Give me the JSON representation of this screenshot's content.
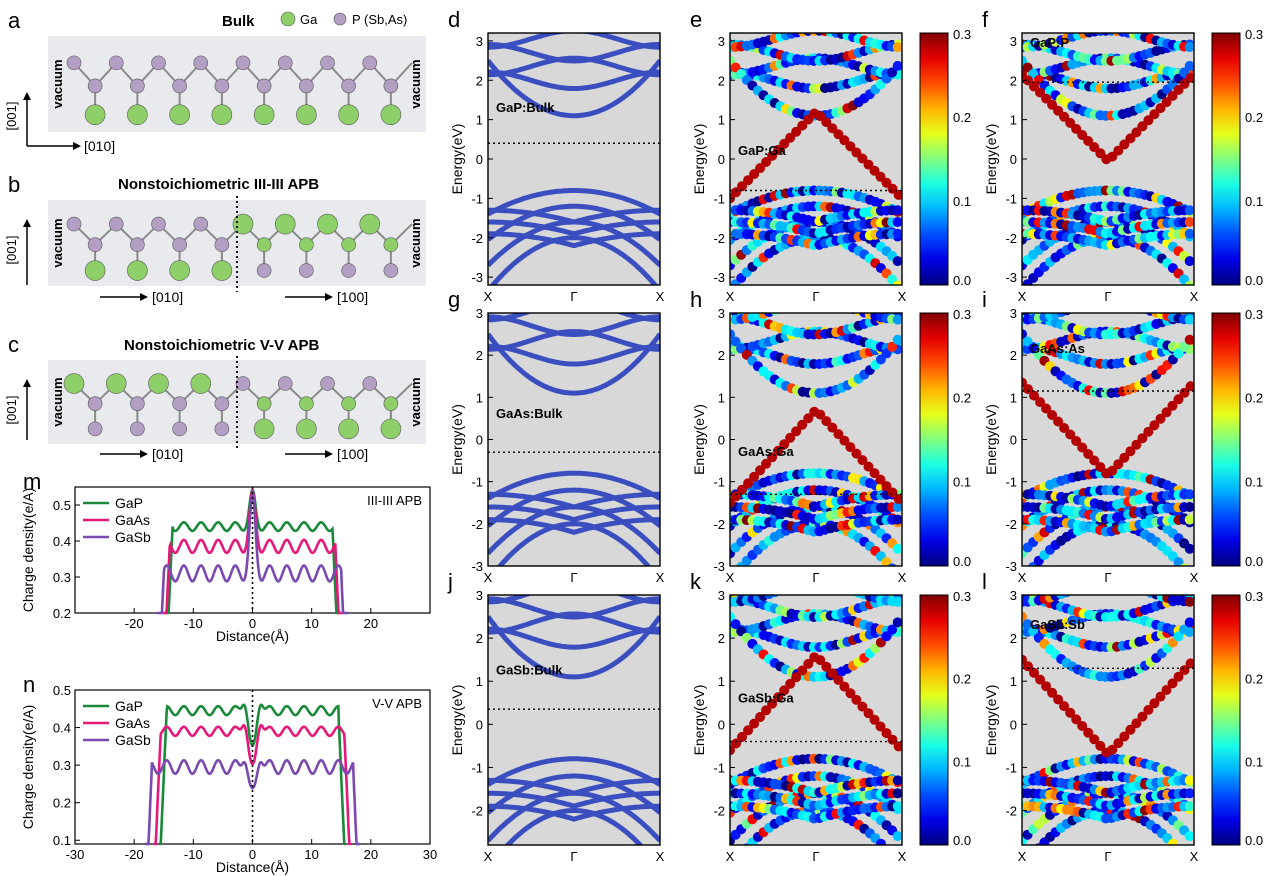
{
  "panel_letters": [
    "a",
    "b",
    "c",
    "d",
    "e",
    "f",
    "g",
    "h",
    "i",
    "j",
    "k",
    "l",
    "m",
    "n"
  ],
  "structures": {
    "legend": {
      "ga": "Ga",
      "p": "P (Sb,As)",
      "ga_color": "#8fcf6a",
      "p_color": "#b39ec4"
    },
    "a": {
      "title": "Bulk",
      "vacuum": "vacuum",
      "axis_v": "[001]",
      "axis_h": "[010]"
    },
    "b": {
      "title": "Nonstoichiometric III-III APB",
      "vacuum": "vacuum",
      "axis_v": "[001]",
      "axis_h1": "[010]",
      "axis_h2": "[100]"
    },
    "c": {
      "title": "Nonstoichiometric V-V APB",
      "vacuum": "vacuum",
      "axis_v": "[001]",
      "axis_h1": "[010]",
      "axis_h2": "[100]"
    }
  },
  "band_common": {
    "ylabel": "Energy(eV)",
    "xticks": [
      "X",
      "Γ",
      "X"
    ],
    "band_color": "#3a4ec0",
    "bg_color": "#d8d8d8"
  },
  "colorbar": {
    "ticks": [
      "0.3",
      "0.2",
      "0.1",
      "0.0"
    ]
  },
  "band_panels": [
    {
      "letter": "d",
      "label": "GaP:Bulk",
      "ylim": [
        -3.2,
        3.2
      ],
      "yticks": [
        "3",
        "2",
        "1",
        "0",
        "-1",
        "-2",
        "-3"
      ],
      "fermi": 0.4,
      "colored": false,
      "colorbar": false
    },
    {
      "letter": "e",
      "label": "GaP:Ga",
      "ylim": [
        -3.2,
        3.2
      ],
      "yticks": [
        "3",
        "2",
        "1",
        "0",
        "-1",
        "-2",
        "-3"
      ],
      "fermi": -0.8,
      "colored": true,
      "colorbar": true
    },
    {
      "letter": "f",
      "label": "GaP:P",
      "ylim": [
        -3.2,
        3.2
      ],
      "yticks": [
        "3",
        "2",
        "1",
        "0",
        "-1",
        "-2",
        "-3"
      ],
      "fermi": 1.95,
      "colored": true,
      "colorbar": true
    },
    {
      "letter": "g",
      "label": "GaAs:Bulk",
      "ylim": [
        -3,
        3
      ],
      "yticks": [
        "3",
        "2",
        "1",
        "0",
        "-1",
        "-2",
        "-3"
      ],
      "fermi": -0.3,
      "colored": false,
      "colorbar": false
    },
    {
      "letter": "h",
      "label": "GaAs:Ga",
      "ylim": [
        -3,
        3
      ],
      "yticks": [
        "3",
        "2",
        "1",
        "0",
        "-1",
        "-2",
        "-3"
      ],
      "fermi": -1.3,
      "colored": true,
      "colorbar": true
    },
    {
      "letter": "i",
      "label": "GaAs:As",
      "ylim": [
        -3,
        3
      ],
      "yticks": [
        "3",
        "2",
        "1",
        "0",
        "-1",
        "-2",
        "-3"
      ],
      "fermi": 1.15,
      "colored": true,
      "colorbar": true
    },
    {
      "letter": "j",
      "label": "GaSb:Bulk",
      "ylim": [
        -2.8,
        3
      ],
      "yticks": [
        "3",
        "2",
        "1",
        "0",
        "-1",
        "-2"
      ],
      "fermi": 0.35,
      "colored": false,
      "colorbar": false
    },
    {
      "letter": "k",
      "label": "GaSb:Ga",
      "ylim": [
        -2.8,
        3
      ],
      "yticks": [
        "3",
        "2",
        "1",
        "0",
        "-1",
        "-2"
      ],
      "fermi": -0.4,
      "colored": true,
      "colorbar": true
    },
    {
      "letter": "l",
      "label": "GaSb:Sb",
      "ylim": [
        -2.8,
        3
      ],
      "yticks": [
        "3",
        "2",
        "1",
        "0",
        "-1",
        "-2"
      ],
      "fermi": 1.3,
      "colored": true,
      "colorbar": true
    }
  ],
  "chart_data": [
    {
      "type": "line",
      "panel": "m",
      "annotation": "III-III APB",
      "xlabel": "Distance(Å)",
      "ylabel": "Charge density(e/A)",
      "xlim": [
        -30,
        30
      ],
      "ylim": [
        0.2,
        0.55
      ],
      "xticks": [
        "-20",
        "-10",
        "0",
        "10",
        "20"
      ],
      "yticks": [
        "0.5",
        "0.4",
        "0.3",
        "0.2"
      ],
      "series": [
        {
          "name": "GaP",
          "color": "#1a8a3a",
          "plateau": 0.44,
          "amp": 0.012,
          "edge": 13.5,
          "peak": 0.53
        },
        {
          "name": "GaAs",
          "color": "#e6187a",
          "plateau": 0.385,
          "amp": 0.018,
          "edge": 14.0,
          "peak": 0.52
        },
        {
          "name": "GaSb",
          "color": "#7a4ab0",
          "plateau": 0.31,
          "amp": 0.022,
          "edge": 15.0,
          "peak": 0.51
        }
      ]
    },
    {
      "type": "line",
      "panel": "n",
      "annotation": "V-V APB",
      "xlabel": "Distance(Å)",
      "ylabel": "Charge density(e/A)",
      "xlim": [
        -30,
        30
      ],
      "ylim": [
        0.09,
        0.5
      ],
      "xticks": [
        "-30",
        "-20",
        "-10",
        "0",
        "10",
        "20",
        "30"
      ],
      "yticks": [
        "0.5",
        "0.4",
        "0.3",
        "0.2",
        "0.1"
      ],
      "series": [
        {
          "name": "GaP",
          "color": "#1a8a3a",
          "plateau": 0.445,
          "amp": 0.012,
          "edge": 14.5,
          "dip": 0.34
        },
        {
          "name": "GaAs",
          "color": "#e6187a",
          "plateau": 0.39,
          "amp": 0.012,
          "edge": 15.5,
          "dip": 0.29
        },
        {
          "name": "GaSb",
          "color": "#7a4ab0",
          "plateau": 0.295,
          "amp": 0.018,
          "edge": 17.0,
          "dip": 0.22
        }
      ]
    }
  ]
}
